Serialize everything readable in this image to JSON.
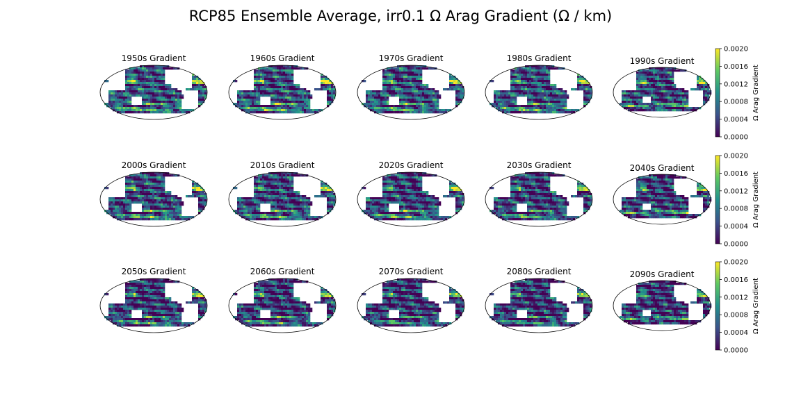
{
  "chart_data": {
    "type": "heatmap",
    "title": "RCP85 Ensemble Average, irr0.1 Ω Arag Gradient (Ω / km)",
    "projection": "Robinson",
    "colormap": "viridis",
    "colormap_stops": [
      "#440154",
      "#3b528b",
      "#21918c",
      "#5ec962",
      "#fde725"
    ],
    "land_color": "#ffffff",
    "panels": [
      [
        "1950s Gradient",
        "1960s Gradient",
        "1970s Gradient",
        "1980s Gradient",
        "1990s Gradient"
      ],
      [
        "2000s Gradient",
        "2010s Gradient",
        "2020s Gradient",
        "2030s Gradient",
        "2040s Gradient"
      ],
      [
        "2050s Gradient",
        "2060s Gradient",
        "2070s Gradient",
        "2080s Gradient",
        "2090s Gradient"
      ]
    ],
    "colorbar": {
      "label": "Ω Arag Gradient",
      "range": [
        0,
        0.002
      ],
      "ticks": [
        "0.0000",
        "0.0004",
        "0.0008",
        "0.0012",
        "0.0016",
        "0.0020"
      ]
    }
  }
}
